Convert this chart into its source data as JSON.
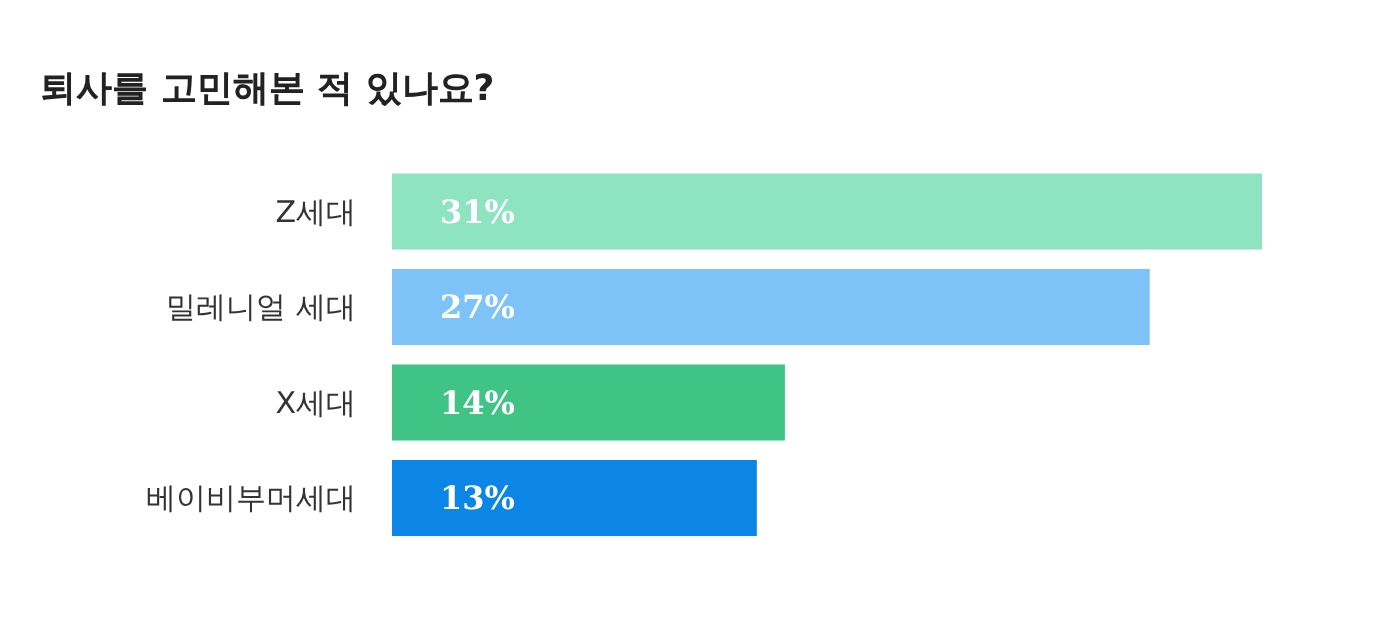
{
  "chart_data": {
    "type": "bar",
    "orientation": "horizontal",
    "title": "퇴사를 고민해본 적 있나요?",
    "categories": [
      "Z세대",
      "밀레니얼 세대",
      "X세대",
      "베이비부머세대"
    ],
    "values": [
      31,
      27,
      14,
      13
    ],
    "value_labels": [
      "31%",
      "27%",
      "14%",
      "13%"
    ],
    "colors": [
      "#8ee3c0",
      "#7dc3f7",
      "#40c486",
      "#0b86e6"
    ]
  }
}
